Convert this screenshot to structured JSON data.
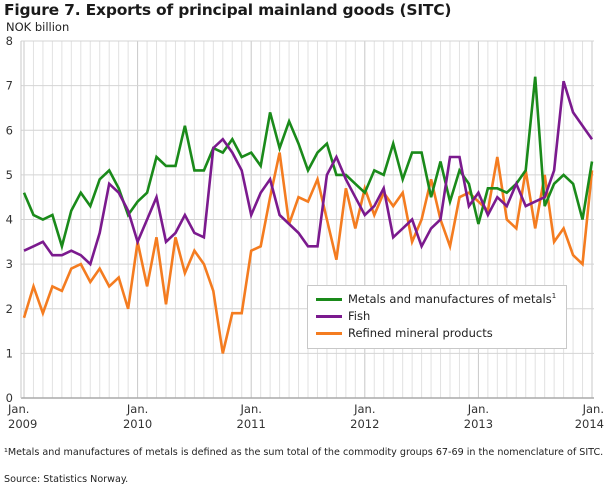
{
  "header": {
    "title": "Figure 7. Exports of principal mainland goods (SITC)",
    "y_unit": "NOK billion"
  },
  "footnote": "¹Metals and manufactures of metals is defined as the sum total of the commodity groups 67-69 in the nomenclature of SITC.",
  "source": "Source: Statistics Norway.",
  "chart_data": {
    "type": "line",
    "title": "Figure 7. Exports of principal mainland goods (SITC)",
    "xlabel": "",
    "ylabel": "NOK billion",
    "ylim": [
      0,
      8
    ],
    "yticks": [
      "0",
      "1",
      "2",
      "3",
      "4",
      "5",
      "6",
      "7",
      "8"
    ],
    "x_start": "Jan. 2009",
    "x_end": "Jan. 2014",
    "frequency": "monthly",
    "xticks": [
      {
        "line1": "Jan.",
        "line2": "2009",
        "month_index": 0
      },
      {
        "line1": "Jan.",
        "line2": "2010",
        "month_index": 12
      },
      {
        "line1": "Jan.",
        "line2": "2011",
        "month_index": 24
      },
      {
        "line1": "Jan.",
        "line2": "2012",
        "month_index": 36
      },
      {
        "line1": "Jan.",
        "line2": "2013",
        "month_index": 48
      },
      {
        "line1": "Jan.",
        "line2": "2014",
        "month_index": 60
      }
    ],
    "grid": true,
    "legend_position": "bottom-right",
    "series": [
      {
        "name": "Metals and manufactures of metals",
        "legend_label": "Metals and manufactures of metals",
        "footnote_mark": "1",
        "color": "#1a8a1a",
        "values": [
          4.6,
          4.1,
          4.0,
          4.1,
          3.4,
          4.2,
          4.6,
          4.3,
          4.9,
          5.1,
          4.7,
          4.1,
          4.4,
          4.6,
          5.4,
          5.2,
          5.2,
          6.1,
          5.1,
          5.1,
          5.6,
          5.5,
          5.8,
          5.4,
          5.5,
          5.2,
          6.4,
          5.6,
          6.2,
          5.7,
          5.1,
          5.5,
          5.7,
          5.0,
          5.0,
          4.8,
          4.6,
          5.1,
          5.0,
          5.7,
          4.9,
          5.5,
          5.5,
          4.5,
          5.3,
          4.4,
          5.1,
          4.8,
          3.9,
          4.7,
          4.7,
          4.6,
          4.8,
          5.1,
          7.2,
          4.3,
          4.8,
          5.0,
          4.8,
          4.0,
          5.3
        ]
      },
      {
        "name": "Fish",
        "legend_label": "Fish",
        "color": "#7b1a8e",
        "values": [
          3.3,
          3.4,
          3.5,
          3.2,
          3.2,
          3.3,
          3.2,
          3.0,
          3.7,
          4.8,
          4.6,
          4.2,
          3.5,
          4.0,
          4.5,
          3.5,
          3.7,
          4.1,
          3.7,
          3.6,
          5.6,
          5.8,
          5.5,
          5.1,
          4.1,
          4.6,
          4.9,
          4.1,
          3.9,
          3.7,
          3.4,
          3.4,
          5.0,
          5.4,
          4.9,
          4.5,
          4.1,
          4.3,
          4.7,
          3.6,
          3.8,
          4.0,
          3.4,
          3.8,
          4.0,
          5.4,
          5.4,
          4.3,
          4.6,
          4.1,
          4.5,
          4.3,
          4.8,
          4.3,
          4.4,
          4.5,
          5.1,
          7.1,
          6.4,
          6.1,
          5.8
        ]
      },
      {
        "name": "Refined mineral products",
        "legend_label": "Refined mineral products",
        "color": "#f47c20",
        "values": [
          1.8,
          2.5,
          1.9,
          2.5,
          2.4,
          2.9,
          3.0,
          2.6,
          2.9,
          2.5,
          2.7,
          2.0,
          3.5,
          2.5,
          3.6,
          2.1,
          3.6,
          2.8,
          3.3,
          3.0,
          2.4,
          1.0,
          1.9,
          1.9,
          3.3,
          3.4,
          4.5,
          5.5,
          3.9,
          4.5,
          4.4,
          4.9,
          4.0,
          3.1,
          4.7,
          3.8,
          4.7,
          4.1,
          4.6,
          4.3,
          4.6,
          3.5,
          4.0,
          4.9,
          4.0,
          3.4,
          4.5,
          4.6,
          4.4,
          4.2,
          5.4,
          4.0,
          3.8,
          5.1,
          3.8,
          5.0,
          3.5,
          3.8,
          3.2,
          3.0,
          5.1
        ]
      }
    ]
  }
}
